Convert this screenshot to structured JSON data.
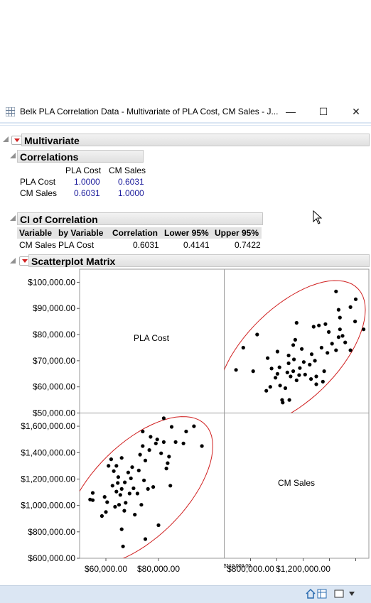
{
  "window": {
    "title": "Belk PLA Correlation Data - Multivariate of PLA Cost, CM Sales - J...",
    "minimize": "—",
    "maximize": "☐",
    "close": "✕"
  },
  "report": {
    "multivariate_title": "Multivariate",
    "correlations": {
      "title": "Correlations",
      "columns": [
        "PLA Cost",
        "CM Sales"
      ],
      "rows": [
        {
          "label": "PLA Cost",
          "values": [
            "1.0000",
            "0.6031"
          ]
        },
        {
          "label": "CM Sales",
          "values": [
            "0.6031",
            "1.0000"
          ]
        }
      ]
    },
    "ci": {
      "title": "CI of Correlation",
      "headers": [
        "Variable",
        "by Variable",
        "Correlation",
        "Lower 95%",
        "Upper 95%"
      ],
      "row": [
        "CM Sales",
        "PLA Cost",
        "0.6031",
        "0.4141",
        "0.7422"
      ]
    },
    "scatter_title": "Scatterplot Matrix"
  },
  "chart_data": {
    "type": "scatter",
    "title": "Scatterplot Matrix",
    "variables": [
      "PLA Cost",
      "CM Sales"
    ],
    "pla_cost_axis": {
      "range": [
        50000,
        105000
      ],
      "ticks": [
        "$100,000.00",
        "$90,000.00",
        "$80,000.00",
        "$70,000.00",
        "$60,000.00",
        "$50,000.00"
      ],
      "tick_values": [
        100000,
        90000,
        80000,
        70000,
        60000,
        50000
      ],
      "bottom_ticks": [
        "$60,000.00",
        "$80,000.00"
      ],
      "bottom_tick_values": [
        60000,
        80000
      ],
      "small_tick": "$110,000.00",
      "small_tick_value": 110000
    },
    "cm_sales_axis": {
      "range": [
        600000,
        1700000
      ],
      "ticks": [
        "$1,600,000.00",
        "$1,400,000.00",
        "$1,200,000.00",
        "$1,000,000.00",
        "$800,000.00",
        "$600,000.00"
      ],
      "tick_values": [
        1600000,
        1400000,
        1200000,
        1000000,
        800000,
        600000
      ],
      "bottom_ticks": [
        "$800,000.00",
        "$1,200,000.00"
      ],
      "bottom_tick_values": [
        800000,
        1200000
      ]
    },
    "points": [
      [
        54000,
        1045000
      ],
      [
        55000,
        1095000
      ],
      [
        55000,
        1040000
      ],
      [
        58500,
        920000
      ],
      [
        59500,
        1065000
      ],
      [
        61000,
        1300000
      ],
      [
        62000,
        1350000
      ],
      [
        60000,
        950000
      ],
      [
        60500,
        1025000
      ],
      [
        62500,
        1150000
      ],
      [
        63000,
        1260000
      ],
      [
        63500,
        990000
      ],
      [
        64000,
        1105000
      ],
      [
        64500,
        1170000
      ],
      [
        64700,
        1215000
      ],
      [
        65000,
        1005000
      ],
      [
        65500,
        1080000
      ],
      [
        66000,
        1360000
      ],
      [
        66000,
        1125000
      ],
      [
        66000,
        820000
      ],
      [
        67000,
        960000
      ],
      [
        67200,
        1175000
      ],
      [
        67500,
        1020000
      ],
      [
        68500,
        1250000
      ],
      [
        69000,
        1090000
      ],
      [
        69500,
        1205000
      ],
      [
        70000,
        1290000
      ],
      [
        70500,
        1130000
      ],
      [
        71000,
        930000
      ],
      [
        72000,
        1090000
      ],
      [
        72500,
        1265000
      ],
      [
        73000,
        1385000
      ],
      [
        73500,
        1005000
      ],
      [
        74000,
        1560000
      ],
      [
        74000,
        1450000
      ],
      [
        74500,
        1190000
      ],
      [
        75000,
        1340000
      ],
      [
        76000,
        1125000
      ],
      [
        76500,
        1420000
      ],
      [
        77000,
        1520000
      ],
      [
        78000,
        1140000
      ],
      [
        79000,
        1470000
      ],
      [
        79500,
        1500000
      ],
      [
        81000,
        1395000
      ],
      [
        82000,
        1660000
      ],
      [
        82000,
        1480000
      ],
      [
        83000,
        1280000
      ],
      [
        83500,
        1320000
      ],
      [
        84000,
        1370000
      ],
      [
        84500,
        1150000
      ],
      [
        85000,
        1595000
      ],
      [
        86500,
        1480000
      ],
      [
        89500,
        1470000
      ],
      [
        90500,
        1560000
      ],
      [
        93500,
        1600000
      ],
      [
        96500,
        1450000
      ],
      [
        80000,
        850000
      ],
      [
        75000,
        745000
      ],
      [
        66500,
        690000
      ],
      [
        64000,
        1300000
      ]
    ],
    "ellipse_hint": "95% density ellipse",
    "ellipse": {
      "center": [
        72500,
        1110000
      ],
      "sd": [
        11500,
        230000
      ],
      "r": 0.6031,
      "level": 0.95
    }
  }
}
